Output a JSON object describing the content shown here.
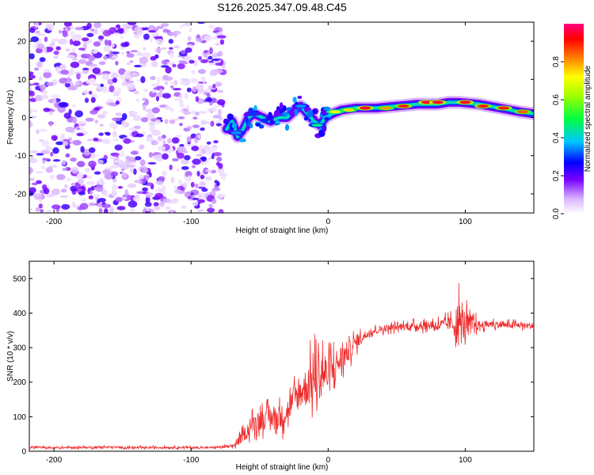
{
  "title": "S126.2025.347.09.48.C45",
  "colors": {
    "snr_line": "#ee2a2a",
    "dot_color": "#8c3cf0",
    "axis": "#000000"
  },
  "chart_data": [
    {
      "type": "heatmap",
      "name": "spectrogram",
      "xlabel": "Height of straight line (km)",
      "ylabel": "Frequency (Hz)",
      "xlim": [
        -218,
        150
      ],
      "ylim": [
        -25,
        25
      ],
      "xticks": [
        -200,
        -100,
        0,
        100
      ],
      "yticks": [
        -20,
        -10,
        0,
        10,
        20
      ],
      "noise_region_x": [
        -218,
        -76
      ],
      "ridge": [
        {
          "x": -74,
          "y": -3
        },
        {
          "x": -70,
          "y": -1
        },
        {
          "x": -66,
          "y": -5
        },
        {
          "x": -62,
          "y": -3
        },
        {
          "x": -58,
          "y": 0
        },
        {
          "x": -54,
          "y": 1
        },
        {
          "x": -48,
          "y": 0
        },
        {
          "x": -42,
          "y": -1
        },
        {
          "x": -36,
          "y": 0
        },
        {
          "x": -30,
          "y": 0
        },
        {
          "x": -24,
          "y": 2
        },
        {
          "x": -20,
          "y": 3
        },
        {
          "x": -15,
          "y": 1
        },
        {
          "x": -10,
          "y": -1
        },
        {
          "x": -6,
          "y": -2
        },
        {
          "x": -2,
          "y": 0
        },
        {
          "x": 3,
          "y": 1
        },
        {
          "x": 10,
          "y": 2
        },
        {
          "x": 20,
          "y": 2.5
        },
        {
          "x": 35,
          "y": 2.5
        },
        {
          "x": 50,
          "y": 3
        },
        {
          "x": 65,
          "y": 3.5
        },
        {
          "x": 80,
          "y": 3.5
        },
        {
          "x": 88,
          "y": 4
        },
        {
          "x": 95,
          "y": 4
        },
        {
          "x": 110,
          "y": 3.5
        },
        {
          "x": 125,
          "y": 2.5
        },
        {
          "x": 140,
          "y": 1.5
        },
        {
          "x": 150,
          "y": 1
        }
      ],
      "peaks": [
        {
          "x": -67,
          "y": -4,
          "amp": 0.35
        },
        {
          "x": -55,
          "y": 1,
          "amp": 0.3
        },
        {
          "x": -20,
          "y": 3,
          "amp": 0.35
        },
        {
          "x": -8,
          "y": -2,
          "amp": 0.45
        },
        {
          "x": 5,
          "y": 1.5,
          "amp": 0.7
        },
        {
          "x": 15,
          "y": 2,
          "amp": 0.75
        },
        {
          "x": 27,
          "y": 2.5,
          "amp": 0.95
        },
        {
          "x": 42,
          "y": 2.5,
          "amp": 0.8
        },
        {
          "x": 55,
          "y": 3,
          "amp": 0.9
        },
        {
          "x": 72,
          "y": 4,
          "amp": 0.95
        },
        {
          "x": 80,
          "y": 4,
          "amp": 0.95
        },
        {
          "x": 100,
          "y": 4,
          "amp": 0.95
        },
        {
          "x": 113,
          "y": 3,
          "amp": 0.9
        },
        {
          "x": 128,
          "y": 2.5,
          "amp": 0.9
        },
        {
          "x": 142,
          "y": 1.5,
          "amp": 0.85
        }
      ],
      "colorbar": {
        "label": "Normalized spectral amplitude",
        "range": [
          0,
          1
        ],
        "ticks": [
          0.0,
          0.2,
          0.4,
          0.6,
          0.8
        ],
        "tick_labels": [
          "0.0",
          "0.2",
          "0.4",
          "0.6",
          "0.8"
        ],
        "stops": [
          {
            "v": 0.0,
            "color": "#ffffff"
          },
          {
            "v": 0.08,
            "color": "#d9b3ff"
          },
          {
            "v": 0.18,
            "color": "#7a00ff"
          },
          {
            "v": 0.27,
            "color": "#0000ff"
          },
          {
            "v": 0.38,
            "color": "#00c8ff"
          },
          {
            "v": 0.5,
            "color": "#00ff40"
          },
          {
            "v": 0.62,
            "color": "#a0ff00"
          },
          {
            "v": 0.72,
            "color": "#ffff00"
          },
          {
            "v": 0.82,
            "color": "#ff8000"
          },
          {
            "v": 0.92,
            "color": "#ff0000"
          },
          {
            "v": 1.0,
            "color": "#ff0080"
          }
        ]
      }
    },
    {
      "type": "line",
      "name": "snr",
      "xlabel": "Height of straight line (km)",
      "ylabel": "SNR (10 * v/v)",
      "xlim": [
        -218,
        150
      ],
      "ylim": [
        0,
        550
      ],
      "xticks": [
        -200,
        -100,
        0,
        100
      ],
      "yticks": [
        0,
        100,
        200,
        300,
        400,
        500
      ],
      "series": [
        {
          "name": "SNR",
          "x": [
            -218,
            -200,
            -180,
            -160,
            -140,
            -120,
            -100,
            -90,
            -80,
            -70,
            -65,
            -60,
            -55,
            -50,
            -45,
            -40,
            -35,
            -30,
            -25,
            -20,
            -15,
            -10,
            -5,
            0,
            5,
            10,
            15,
            20,
            25,
            30,
            40,
            50,
            60,
            70,
            80,
            90,
            95,
            100,
            110,
            120,
            130,
            140,
            150
          ],
          "values": [
            12,
            10,
            11,
            12,
            10,
            11,
            11,
            10,
            12,
            14,
            30,
            55,
            80,
            90,
            95,
            100,
            95,
            115,
            150,
            170,
            190,
            210,
            230,
            220,
            245,
            270,
            290,
            315,
            330,
            345,
            355,
            360,
            362,
            365,
            365,
            370,
            368,
            368,
            365,
            368,
            365,
            365,
            362
          ],
          "spread": [
            6,
            5,
            6,
            6,
            5,
            6,
            5,
            5,
            6,
            10,
            25,
            40,
            50,
            60,
            60,
            60,
            70,
            70,
            80,
            90,
            120,
            140,
            150,
            110,
            100,
            80,
            60,
            45,
            30,
            20,
            20,
            20,
            22,
            25,
            30,
            40,
            140,
            80,
            25,
            20,
            18,
            18,
            18
          ]
        }
      ]
    }
  ]
}
